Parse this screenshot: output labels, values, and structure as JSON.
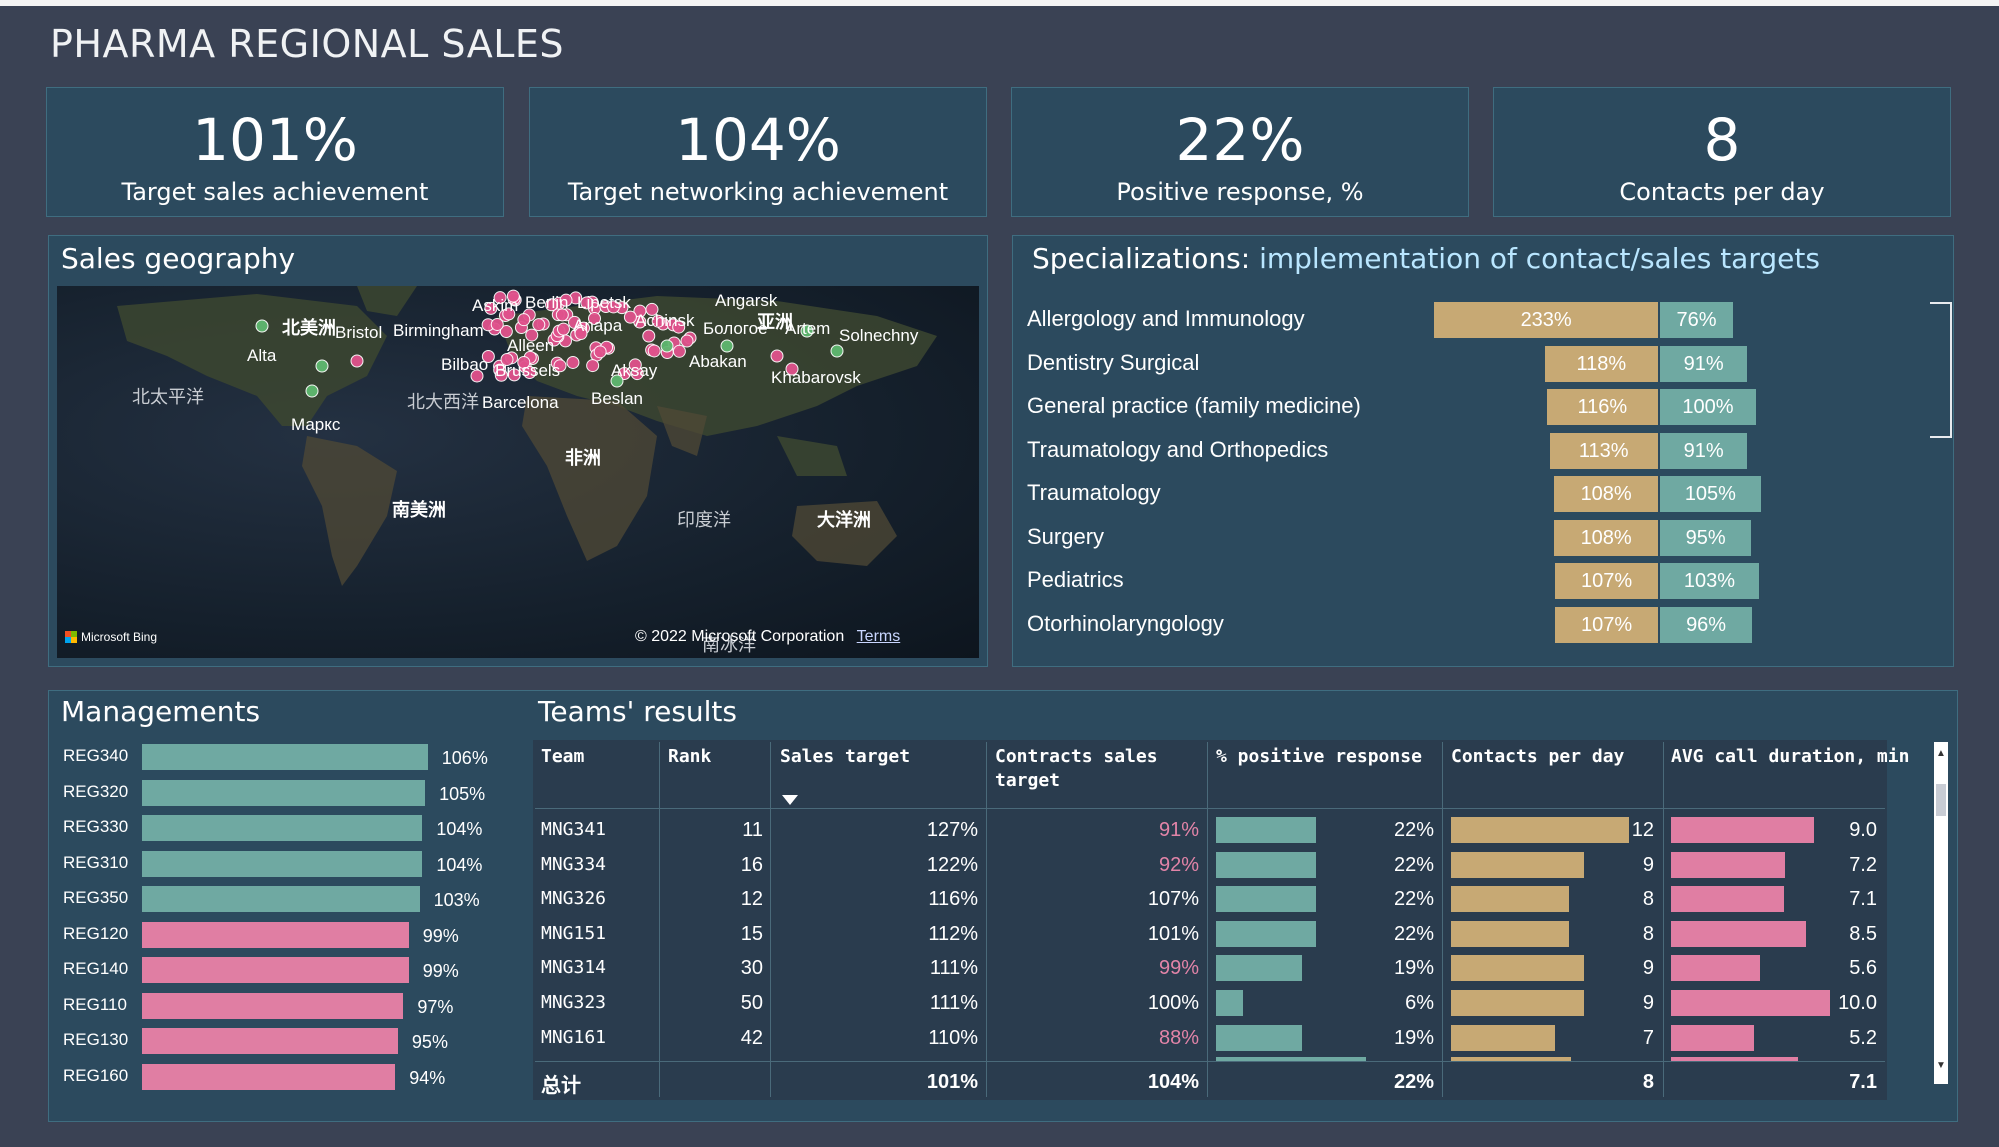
{
  "title": "PHARMA REGIONAL SALES",
  "kpis": [
    {
      "value": "101%",
      "label": "Target sales achievement"
    },
    {
      "value": "104%",
      "label": "Target networking achievement"
    },
    {
      "value": "22%",
      "label": "Positive response, %"
    },
    {
      "value": "8",
      "label": "Contacts per day"
    }
  ],
  "map": {
    "title": "Sales geography",
    "labels": {
      "north_america": "北美洲",
      "north_pacific": "北太平洋",
      "north_atlantic": "北大西洋",
      "africa": "非洲",
      "south_america": "南美洲",
      "indian_ocean": "印度洋",
      "oceania": "大洋洲",
      "southern_ocean": "南冰洋",
      "asia": "亚洲"
    },
    "cities": [
      "Askim",
      "Berlin",
      "Lipetsk",
      "Angarsk",
      "Bristol",
      "Birmingham",
      "Alleen",
      "Anapa",
      "Achinsk",
      "Бологое",
      "Artem",
      "Solnechny",
      "Alta",
      "Bilbao",
      "Brussels",
      "Aksay",
      "Abakan",
      "Khabarovsk",
      "Barcelona",
      "Beslan",
      "Маркс"
    ],
    "credits": "© 2022 Microsoft Corporation",
    "terms": "Terms",
    "provider": "Microsoft Bing",
    "colors": {
      "pink_dot": "#e0528c",
      "green_dot": "#5fb870"
    }
  },
  "specializations": {
    "title_plain": "Specializations:",
    "title_accent": "implementation of contact/sales targets",
    "rows": [
      {
        "name": "Allergology and Immunology",
        "sales": "233%",
        "contacts": "76%",
        "sales_v": 233,
        "contacts_v": 76
      },
      {
        "name": "Dentistry Surgical",
        "sales": "118%",
        "contacts": "91%",
        "sales_v": 118,
        "contacts_v": 91
      },
      {
        "name": "General practice (family medicine)",
        "sales": "116%",
        "contacts": "100%",
        "sales_v": 116,
        "contacts_v": 100
      },
      {
        "name": "Traumatology and Orthopedics",
        "sales": "113%",
        "contacts": "91%",
        "sales_v": 113,
        "contacts_v": 91
      },
      {
        "name": "Traumatology",
        "sales": "108%",
        "contacts": "105%",
        "sales_v": 108,
        "contacts_v": 105
      },
      {
        "name": "Surgery",
        "sales": "108%",
        "contacts": "95%",
        "sales_v": 108,
        "contacts_v": 95
      },
      {
        "name": "Pediatrics",
        "sales": "107%",
        "contacts": "103%",
        "sales_v": 107,
        "contacts_v": 103
      },
      {
        "name": "Otorhinolaryngology",
        "sales": "107%",
        "contacts": "96%",
        "sales_v": 107,
        "contacts_v": 96
      }
    ],
    "colors": {
      "sales": "#c7a974",
      "contacts": "#6fa9a2"
    }
  },
  "managements": {
    "title": "Managements",
    "rows": [
      {
        "name": "REG340",
        "value": "106%",
        "v": 106,
        "color": "#6fa9a2"
      },
      {
        "name": "REG320",
        "value": "105%",
        "v": 105,
        "color": "#6fa9a2"
      },
      {
        "name": "REG330",
        "value": "104%",
        "v": 104,
        "color": "#6fa9a2"
      },
      {
        "name": "REG310",
        "value": "104%",
        "v": 104,
        "color": "#6fa9a2"
      },
      {
        "name": "REG350",
        "value": "103%",
        "v": 103,
        "color": "#6fa9a2"
      },
      {
        "name": "REG120",
        "value": "99%",
        "v": 99,
        "color": "#e07ea3"
      },
      {
        "name": "REG140",
        "value": "99%",
        "v": 99,
        "color": "#e07ea3"
      },
      {
        "name": "REG110",
        "value": "97%",
        "v": 97,
        "color": "#e07ea3"
      },
      {
        "name": "REG130",
        "value": "95%",
        "v": 95,
        "color": "#e07ea3"
      },
      {
        "name": "REG160",
        "value": "94%",
        "v": 94,
        "color": "#e07ea3"
      }
    ]
  },
  "teams": {
    "title": "Teams' results",
    "headers": {
      "team": "Team",
      "rank": "Rank",
      "sales_target": "Sales target",
      "contracts_line1": "Contracts sales",
      "contracts_line2": "target",
      "positive": "% positive response",
      "contacts": "Contacts per day",
      "avg": "AVG call duration, min"
    },
    "rows": [
      {
        "team": "MNG341",
        "rank": "11",
        "sales": "127%",
        "contracts": "91%",
        "contracts_low": true,
        "positive": "22%",
        "positive_v": 22,
        "contacts": "12",
        "contacts_v": 12,
        "avg": "9.0",
        "avg_v": 9.0
      },
      {
        "team": "MNG334",
        "rank": "16",
        "sales": "122%",
        "contracts": "92%",
        "contracts_low": true,
        "positive": "22%",
        "positive_v": 22,
        "contacts": "9",
        "contacts_v": 9,
        "avg": "7.2",
        "avg_v": 7.2
      },
      {
        "team": "MNG326",
        "rank": "12",
        "sales": "116%",
        "contracts": "107%",
        "contracts_low": false,
        "positive": "22%",
        "positive_v": 22,
        "contacts": "8",
        "contacts_v": 8,
        "avg": "7.1",
        "avg_v": 7.1
      },
      {
        "team": "MNG151",
        "rank": "15",
        "sales": "112%",
        "contracts": "101%",
        "contracts_low": false,
        "positive": "22%",
        "positive_v": 22,
        "contacts": "8",
        "contacts_v": 8,
        "avg": "8.5",
        "avg_v": 8.5
      },
      {
        "team": "MNG314",
        "rank": "30",
        "sales": "111%",
        "contracts": "99%",
        "contracts_low": true,
        "positive": "19%",
        "positive_v": 19,
        "contacts": "9",
        "contacts_v": 9,
        "avg": "5.6",
        "avg_v": 5.6
      },
      {
        "team": "MNG323",
        "rank": "50",
        "sales": "111%",
        "contracts": "100%",
        "contracts_low": false,
        "positive": "6%",
        "positive_v": 6,
        "contacts": "9",
        "contacts_v": 9,
        "avg": "10.0",
        "avg_v": 10.0
      },
      {
        "team": "MNG161",
        "rank": "42",
        "sales": "110%",
        "contracts": "88%",
        "contracts_low": true,
        "positive": "19%",
        "positive_v": 19,
        "contacts": "7",
        "contacts_v": 7,
        "avg": "5.2",
        "avg_v": 5.2
      }
    ],
    "total": {
      "label": "总计",
      "sales": "101%",
      "contracts": "104%",
      "positive": "22%",
      "contacts": "8",
      "avg": "7.1"
    },
    "colors": {
      "positive": "#6fa9a2",
      "contacts": "#c7a974",
      "avg": "#e07ea3",
      "pink_text": "#e284a8"
    }
  }
}
